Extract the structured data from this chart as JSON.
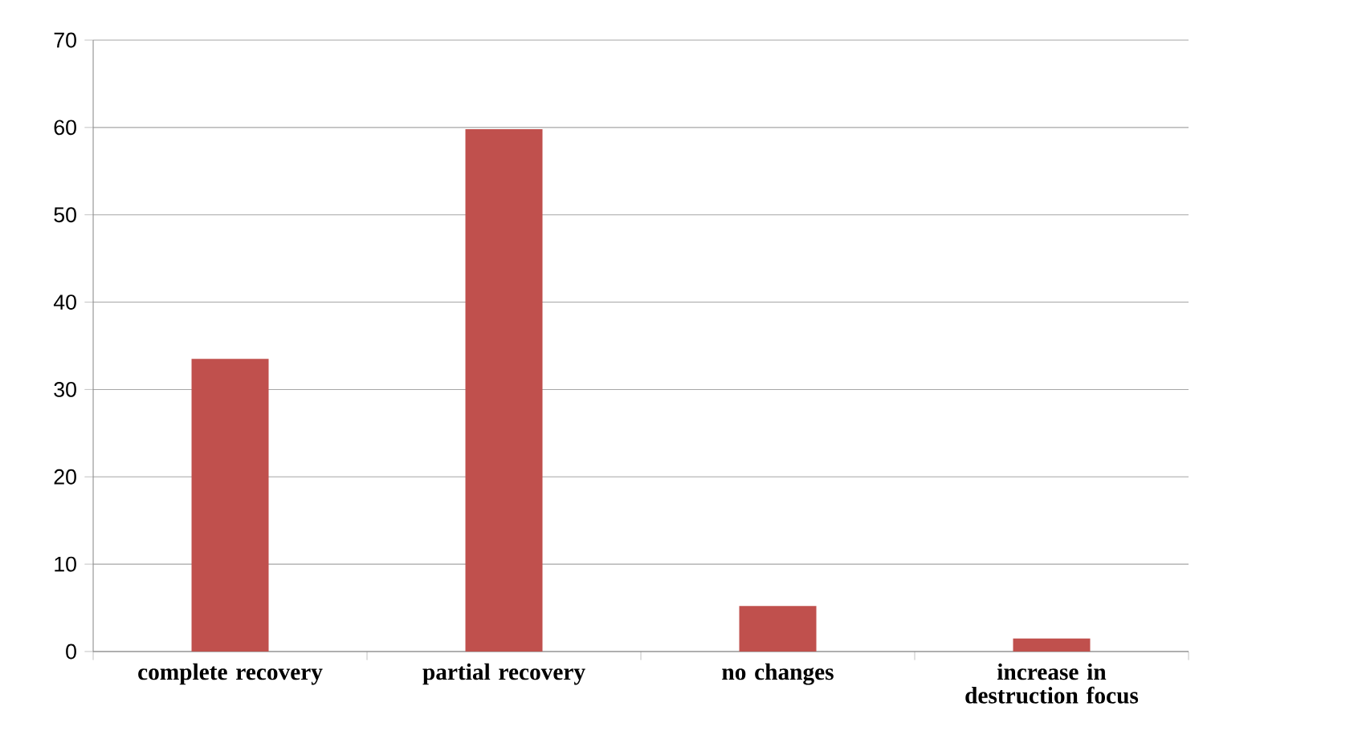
{
  "chart_data": {
    "type": "bar",
    "categories": [
      "complete recovery",
      "partial recovery",
      "no changes",
      "increase in destruction focus"
    ],
    "series": [
      {
        "color": "#c0504d",
        "values": [
          33.5,
          59.8,
          5.2,
          1.5
        ]
      }
    ],
    "ylim": [
      0,
      70
    ],
    "yticks": [
      0,
      10,
      20,
      30,
      40,
      50,
      60,
      70
    ],
    "grid": "y"
  }
}
